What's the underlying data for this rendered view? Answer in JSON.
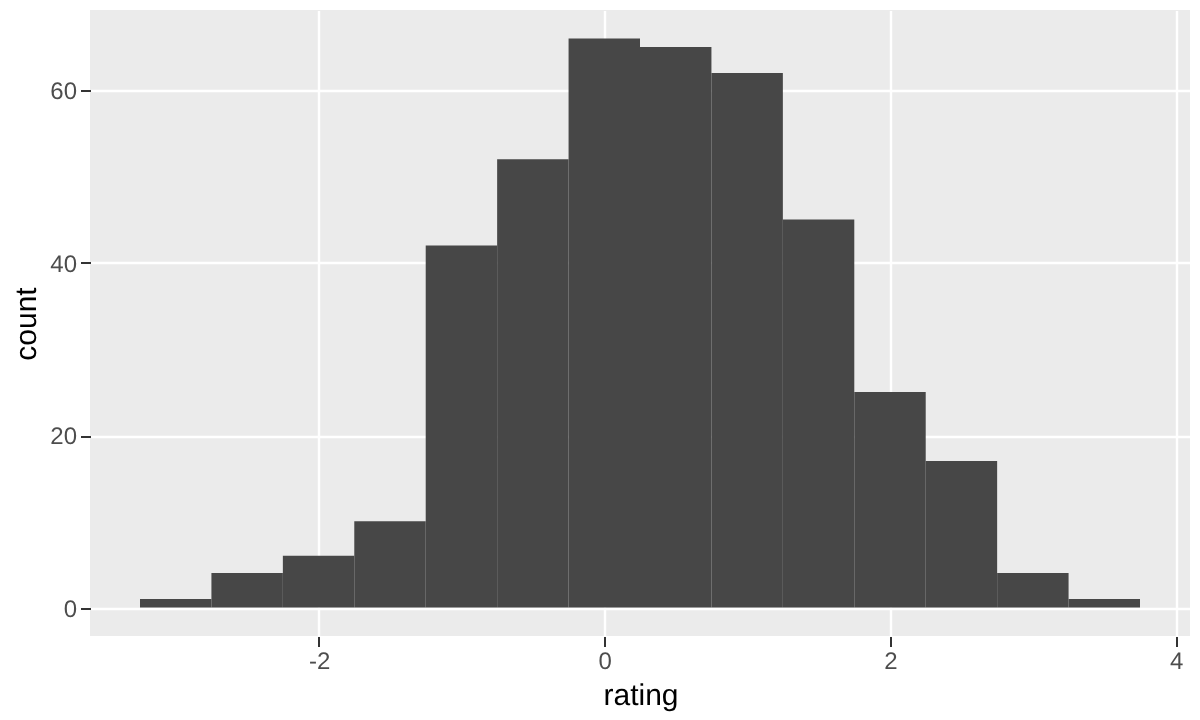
{
  "chart_data": {
    "type": "histogram",
    "xlabel": "rating",
    "ylabel": "count",
    "bins": [
      -3.25,
      -2.75,
      -2.25,
      -1.75,
      -1.25,
      -0.75,
      -0.25,
      0.25,
      0.75,
      1.25,
      1.75,
      2.25,
      2.75,
      3.25,
      3.75
    ],
    "values": [
      1,
      4,
      6,
      10,
      42,
      52,
      66,
      65,
      62,
      45,
      25,
      17,
      4,
      1
    ],
    "color": "#474747",
    "xlim": [
      -3.6,
      4.1
    ],
    "ylim": [
      -3.3,
      69.3
    ],
    "xticks": [
      -2,
      0,
      2,
      4
    ],
    "yticks": [
      0,
      20,
      40,
      60
    ],
    "grid": true
  }
}
